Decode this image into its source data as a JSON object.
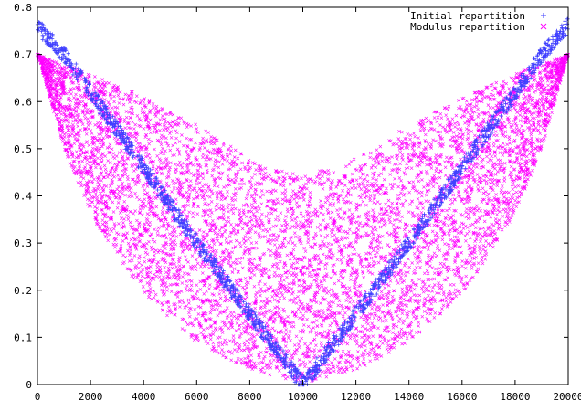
{
  "chart_data": {
    "type": "scatter",
    "title": "",
    "xlabel": "",
    "ylabel": "",
    "xlim": [
      0,
      20000
    ],
    "ylim": [
      0,
      0.8
    ],
    "x_ticks": [
      "0",
      "2000",
      "4000",
      "6000",
      "8000",
      "10000",
      "12000",
      "14000",
      "16000",
      "18000",
      "20000"
    ],
    "y_ticks": [
      "0",
      "0.1",
      "0.2",
      "0.3",
      "0.4",
      "0.5",
      "0.6",
      "0.7",
      "0.8"
    ],
    "grid": false,
    "legend_position": "top-right",
    "series": [
      {
        "name": "Initial repartition",
        "marker": "+",
        "color": "#4040ff",
        "description_points": [
          {
            "x": 0,
            "y": 0.76
          },
          {
            "x": 1000,
            "y": 0.7
          },
          {
            "x": 2000,
            "y": 0.62
          },
          {
            "x": 4000,
            "y": 0.46
          },
          {
            "x": 6000,
            "y": 0.3
          },
          {
            "x": 8000,
            "y": 0.15
          },
          {
            "x": 10000,
            "y": 0.0
          },
          {
            "x": 12000,
            "y": 0.15
          },
          {
            "x": 14000,
            "y": 0.3
          },
          {
            "x": 16000,
            "y": 0.46
          },
          {
            "x": 18000,
            "y": 0.62
          },
          {
            "x": 19000,
            "y": 0.7
          },
          {
            "x": 20000,
            "y": 0.76
          }
        ]
      },
      {
        "name": "Modulus repartition",
        "marker": "x",
        "color": "#ff00ff",
        "upper_envelope": [
          {
            "x": 0,
            "y": 0.7
          },
          {
            "x": 2000,
            "y": 0.66
          },
          {
            "x": 4000,
            "y": 0.61
          },
          {
            "x": 6000,
            "y": 0.55
          },
          {
            "x": 8000,
            "y": 0.48
          },
          {
            "x": 10000,
            "y": 0.44
          },
          {
            "x": 12000,
            "y": 0.48
          },
          {
            "x": 14000,
            "y": 0.55
          },
          {
            "x": 16000,
            "y": 0.61
          },
          {
            "x": 18000,
            "y": 0.66
          },
          {
            "x": 20000,
            "y": 0.7
          }
        ],
        "lower_envelope": [
          {
            "x": 0,
            "y": 0.7
          },
          {
            "x": 1000,
            "y": 0.5
          },
          {
            "x": 2000,
            "y": 0.36
          },
          {
            "x": 4000,
            "y": 0.19
          },
          {
            "x": 6000,
            "y": 0.09
          },
          {
            "x": 8000,
            "y": 0.03
          },
          {
            "x": 10000,
            "y": 0.0
          },
          {
            "x": 12000,
            "y": 0.03
          },
          {
            "x": 14000,
            "y": 0.09
          },
          {
            "x": 16000,
            "y": 0.19
          },
          {
            "x": 18000,
            "y": 0.36
          },
          {
            "x": 19000,
            "y": 0.5
          },
          {
            "x": 20000,
            "y": 0.7
          }
        ]
      }
    ]
  }
}
